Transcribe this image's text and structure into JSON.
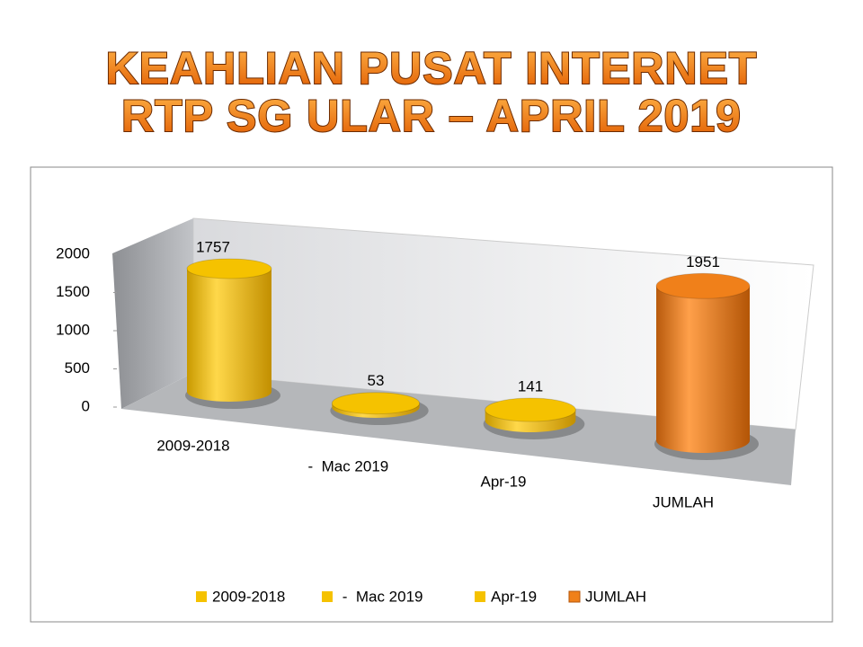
{
  "chart_data": {
    "type": "bar3d",
    "title": [
      "KEAHLIAN PUSAT INTERNET",
      "RTP SG ULAR – APRIL 2019"
    ],
    "categories": [
      "2009-2018",
      " -  Mac 2019",
      "Apr-19",
      "JUMLAH"
    ],
    "values": [
      1757,
      53,
      141,
      1951
    ],
    "colors": [
      "#f5c200",
      "#f5c200",
      "#f5c200",
      "#f0801a"
    ],
    "ylim": [
      0,
      2000
    ],
    "yticks": [
      0,
      500,
      1000,
      1500,
      2000
    ],
    "legend": "bottom"
  }
}
